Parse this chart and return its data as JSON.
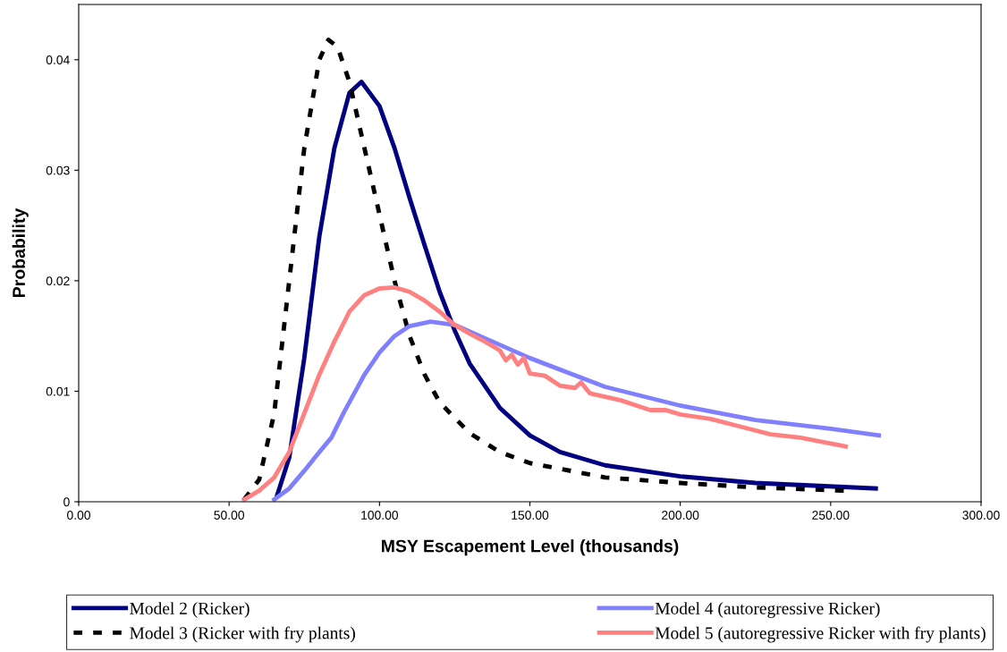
{
  "chart_data": {
    "type": "line",
    "xlabel": "MSY Escapement Level (thousands)",
    "ylabel": "Probability",
    "xlim": [
      0,
      300
    ],
    "xticks": [
      {
        "value": 0,
        "label": "0.00"
      },
      {
        "value": 50,
        "label": "50.00"
      },
      {
        "value": 100,
        "label": "100.00"
      },
      {
        "value": 150,
        "label": "150.00"
      },
      {
        "value": 200,
        "label": "200.00"
      },
      {
        "value": 250,
        "label": "250.00"
      },
      {
        "value": 300,
        "label": "300.00"
      }
    ],
    "ylim": [
      0,
      0.045
    ],
    "yticks": [
      0,
      0.01,
      0.02,
      0.03,
      0.04
    ],
    "grid": false,
    "legend": "bottom",
    "marker": "none",
    "series": [
      {
        "name": "Model 2 (Ricker)",
        "color": "#000080",
        "line_style": "solid",
        "x": [
          66,
          70,
          75,
          80,
          85,
          90,
          94,
          100,
          105,
          110,
          115,
          120,
          125,
          130,
          140,
          150,
          160,
          175,
          200,
          225,
          265
        ],
        "values": [
          0.0006,
          0.004,
          0.013,
          0.024,
          0.032,
          0.037,
          0.038,
          0.0358,
          0.032,
          0.0275,
          0.0232,
          0.019,
          0.0155,
          0.0125,
          0.0085,
          0.006,
          0.0045,
          0.0033,
          0.0023,
          0.0017,
          0.0012
        ]
      },
      {
        "name": "Model 3 (Ricker with fry plants)",
        "color": "#000000",
        "line_style": "dashed",
        "x": [
          55,
          60,
          65,
          70,
          75,
          80,
          83,
          86,
          90,
          95,
          100,
          105,
          110,
          115,
          120,
          130,
          140,
          150,
          175,
          200,
          225,
          255
        ],
        "values": [
          0.0002,
          0.002,
          0.008,
          0.02,
          0.032,
          0.04,
          0.0418,
          0.0412,
          0.038,
          0.032,
          0.026,
          0.02,
          0.015,
          0.0115,
          0.009,
          0.0062,
          0.0045,
          0.0035,
          0.0022,
          0.0017,
          0.0013,
          0.001
        ]
      },
      {
        "name": "Model 4 (autoregressive Ricker)",
        "color": "#8080ff",
        "line_style": "solid",
        "x": [
          65,
          70,
          75,
          80,
          84,
          88,
          95,
          100,
          105,
          110,
          117,
          125,
          135,
          150,
          175,
          200,
          225,
          250,
          266
        ],
        "values": [
          0.0002,
          0.0012,
          0.0028,
          0.0045,
          0.0058,
          0.008,
          0.0115,
          0.0135,
          0.015,
          0.0159,
          0.0163,
          0.016,
          0.0148,
          0.013,
          0.0104,
          0.0087,
          0.0074,
          0.0066,
          0.006
        ]
      },
      {
        "name": "Model 5 (autoregressive Ricker with fry plants)",
        "color": "#ff8080",
        "line_style": "solid",
        "x": [
          55,
          60,
          65,
          70,
          75,
          80,
          85,
          90,
          95,
          100,
          105,
          110,
          115,
          120,
          125,
          130,
          135,
          140,
          142,
          144,
          146,
          148,
          150,
          155,
          160,
          165,
          167,
          170,
          180,
          190,
          195,
          200,
          210,
          220,
          230,
          240,
          255
        ],
        "values": [
          0.0002,
          0.001,
          0.0022,
          0.0045,
          0.008,
          0.0115,
          0.0145,
          0.0172,
          0.0187,
          0.0193,
          0.0194,
          0.019,
          0.0182,
          0.0172,
          0.016,
          0.0152,
          0.0145,
          0.0137,
          0.0128,
          0.0133,
          0.0124,
          0.013,
          0.0116,
          0.0114,
          0.0105,
          0.0103,
          0.0108,
          0.0098,
          0.0092,
          0.0083,
          0.0083,
          0.0079,
          0.0075,
          0.0068,
          0.0061,
          0.0058,
          0.005
        ]
      }
    ]
  }
}
